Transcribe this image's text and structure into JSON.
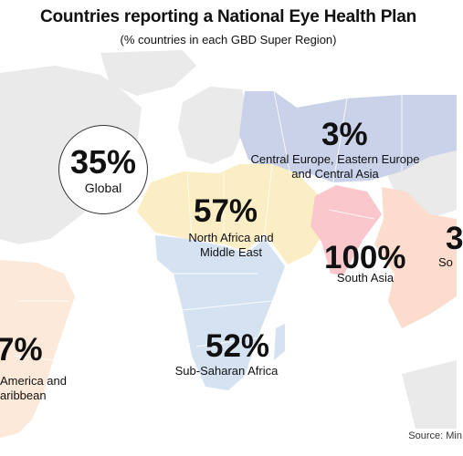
{
  "title": "Countries reporting a National Eye Health Plan",
  "subtitle": "(% countries in each GBD Super Region)",
  "global": {
    "value": "35%",
    "label": "Global"
  },
  "regions": {
    "ce": {
      "value": "3%",
      "name_line1": "Central Europe, Eastern Europe",
      "name_line2": "and Central Asia",
      "color": "#c9d2e9"
    },
    "nafme": {
      "value": "57%",
      "name_line1": "North Africa and",
      "name_line2": "Middle East",
      "color": "#fbeec4"
    },
    "sa": {
      "value": "100%",
      "name": "South Asia",
      "color": "#f9c7cc"
    },
    "sea": {
      "value": "3",
      "name": "So",
      "color": "#fbdccd"
    },
    "ssa": {
      "value": "52%",
      "name": "Sub-Saharan Africa",
      "color": "#d5e2f1"
    },
    "lac": {
      "value": "7%",
      "name_line1": "America and",
      "name_line2": "aribbean",
      "color": "#fde9d9"
    }
  },
  "base_color": "#eaeaea",
  "source": "Source: Min"
}
